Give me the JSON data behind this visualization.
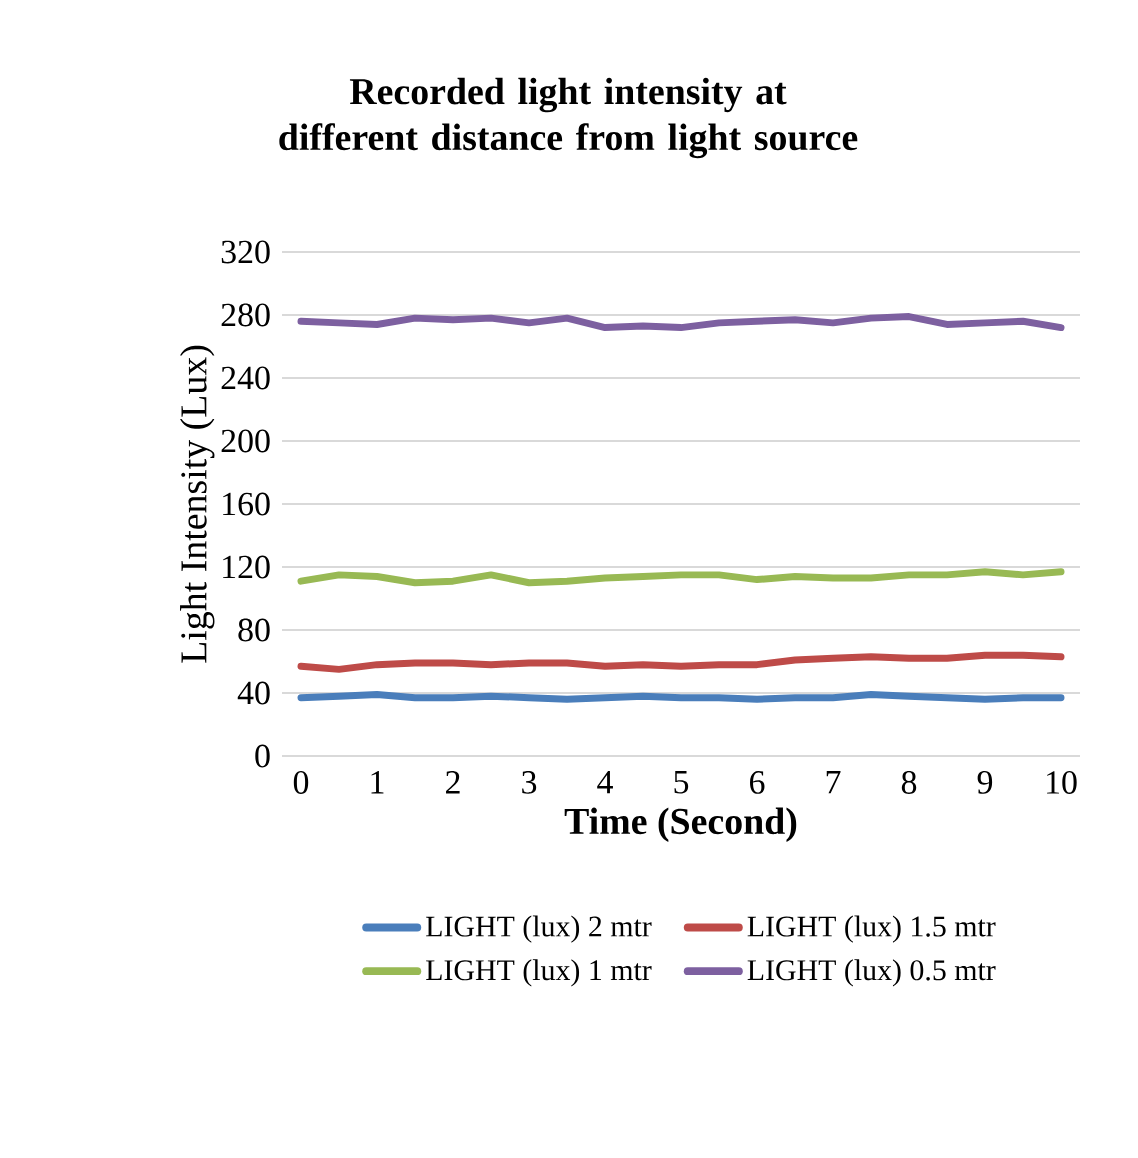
{
  "chart_data": {
    "type": "line",
    "title": "Recorded light intensity at different distance from light source",
    "xlabel": "Time (Second)",
    "ylabel": "Light Intensity (Lux)",
    "x": [
      0,
      0.5,
      1,
      1.5,
      2,
      2.5,
      3,
      3.5,
      4,
      4.5,
      5,
      5.5,
      6,
      6.5,
      7,
      7.5,
      8,
      8.5,
      9,
      9.5,
      10
    ],
    "series": [
      {
        "name": "LIGHT (lux) 2 mtr",
        "color": "#4a7ebb",
        "values": [
          37,
          38,
          39,
          37,
          37,
          38,
          37,
          36,
          37,
          38,
          37,
          37,
          36,
          37,
          37,
          39,
          38,
          37,
          36,
          37,
          37
        ]
      },
      {
        "name": "LIGHT (lux) 1.5 mtr",
        "color": "#be4b48",
        "values": [
          57,
          55,
          58,
          59,
          59,
          58,
          59,
          59,
          57,
          58,
          57,
          58,
          58,
          61,
          62,
          63,
          62,
          62,
          64,
          64,
          63
        ]
      },
      {
        "name": "LIGHT (lux) 1 mtr",
        "color": "#98b954",
        "values": [
          111,
          115,
          114,
          110,
          111,
          115,
          110,
          111,
          113,
          114,
          115,
          115,
          112,
          114,
          113,
          113,
          115,
          115,
          117,
          115,
          117
        ]
      },
      {
        "name": "LIGHT (lux) 0.5 mtr",
        "color": "#7d60a0",
        "values": [
          276,
          275,
          274,
          278,
          277,
          278,
          275,
          278,
          272,
          273,
          272,
          275,
          276,
          277,
          275,
          278,
          279,
          274,
          275,
          276,
          272
        ]
      }
    ],
    "xlim": [
      -0.25,
      10.25
    ],
    "xticks": [
      0,
      1,
      2,
      3,
      4,
      5,
      6,
      7,
      8,
      9,
      10
    ],
    "ylim": [
      0,
      320
    ],
    "yticks": [
      0,
      40,
      80,
      120,
      160,
      200,
      240,
      280,
      320
    ],
    "grid": "y",
    "legend": "bottom",
    "marker": "none",
    "line_style": "solid"
  }
}
